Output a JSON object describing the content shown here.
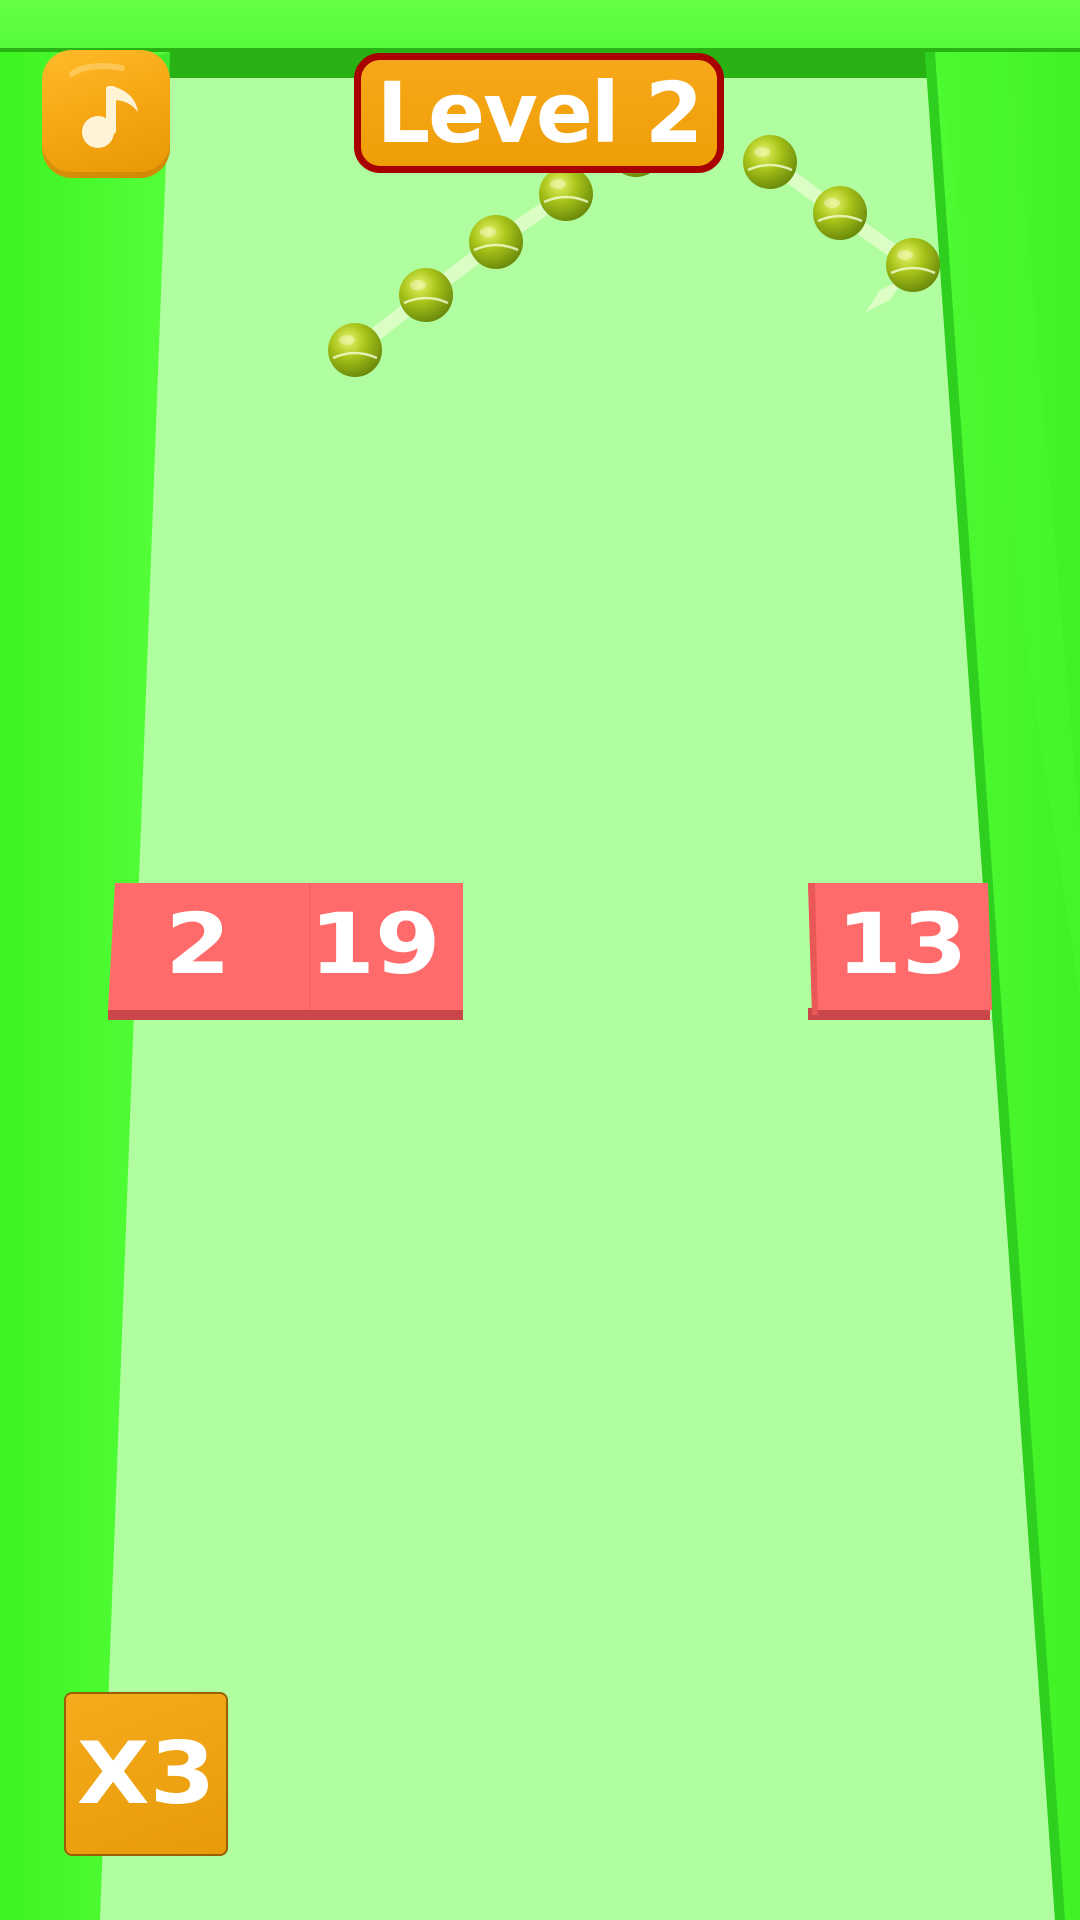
{
  "game": {
    "level_label": "Level 2",
    "multiplier_label": "X3"
  },
  "blocks": [
    {
      "label": "2"
    },
    {
      "label": "19"
    },
    {
      "label": "13"
    }
  ],
  "balls": {
    "count": 8
  },
  "icons": {
    "music_button": "music-note-icon"
  },
  "colors": {
    "floor": "#b0fea0",
    "wall": "#4cff30",
    "wall_shadow": "#33d628",
    "top_rim": "#28b214",
    "block": "#ff6b6b",
    "block_shadow": "#c9474a",
    "badge_fill": "#f0a009",
    "badge_border": "#a80000",
    "ball": "#a8c41c"
  }
}
